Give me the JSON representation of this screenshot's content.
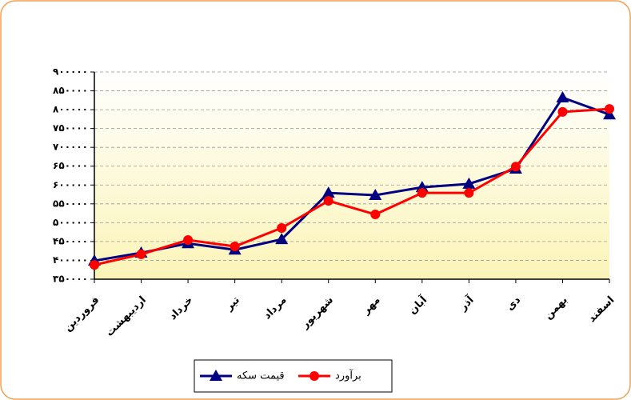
{
  "chart_data": {
    "type": "line",
    "categories": [
      "فروردین",
      "اردیبهشت",
      "خرداد",
      "تیر",
      "مرداد",
      "شهریور",
      "مهر",
      "آبان",
      "آذر",
      "دی",
      "بهمن",
      "اسفند"
    ],
    "series": [
      {
        "name": "قیمت سکه",
        "color": "#000080",
        "marker": "triangle",
        "values": [
          399000,
          420000,
          445000,
          428000,
          456000,
          579000,
          573000,
          594000,
          603000,
          643000,
          832000,
          787000
        ]
      },
      {
        "name": "برآورد",
        "color": "#ff0000",
        "marker": "circle",
        "values": [
          388000,
          416000,
          454000,
          437000,
          486000,
          558000,
          522000,
          579000,
          579000,
          649000,
          794000,
          802000
        ]
      }
    ],
    "ylim": [
      350000,
      900000
    ],
    "yticks": [
      {
        "value": 350000,
        "label": "۳۵۰۰۰۰"
      },
      {
        "value": 400000,
        "label": "۴۰۰۰۰۰"
      },
      {
        "value": 450000,
        "label": "۴۵۰۰۰۰"
      },
      {
        "value": 500000,
        "label": "۵۰۰۰۰۰"
      },
      {
        "value": 550000,
        "label": "۵۵۰۰۰۰"
      },
      {
        "value": 600000,
        "label": "۶۰۰۰۰۰"
      },
      {
        "value": 650000,
        "label": "۶۵۰۰۰۰"
      },
      {
        "value": 700000,
        "label": "۷۰۰۰۰۰"
      },
      {
        "value": 750000,
        "label": "۷۵۰۰۰۰"
      },
      {
        "value": 800000,
        "label": "۸۰۰۰۰۰"
      },
      {
        "value": 850000,
        "label": "۸۵۰۰۰۰"
      },
      {
        "value": 900000,
        "label": "۹۰۰۰۰۰"
      }
    ],
    "grid": true
  }
}
